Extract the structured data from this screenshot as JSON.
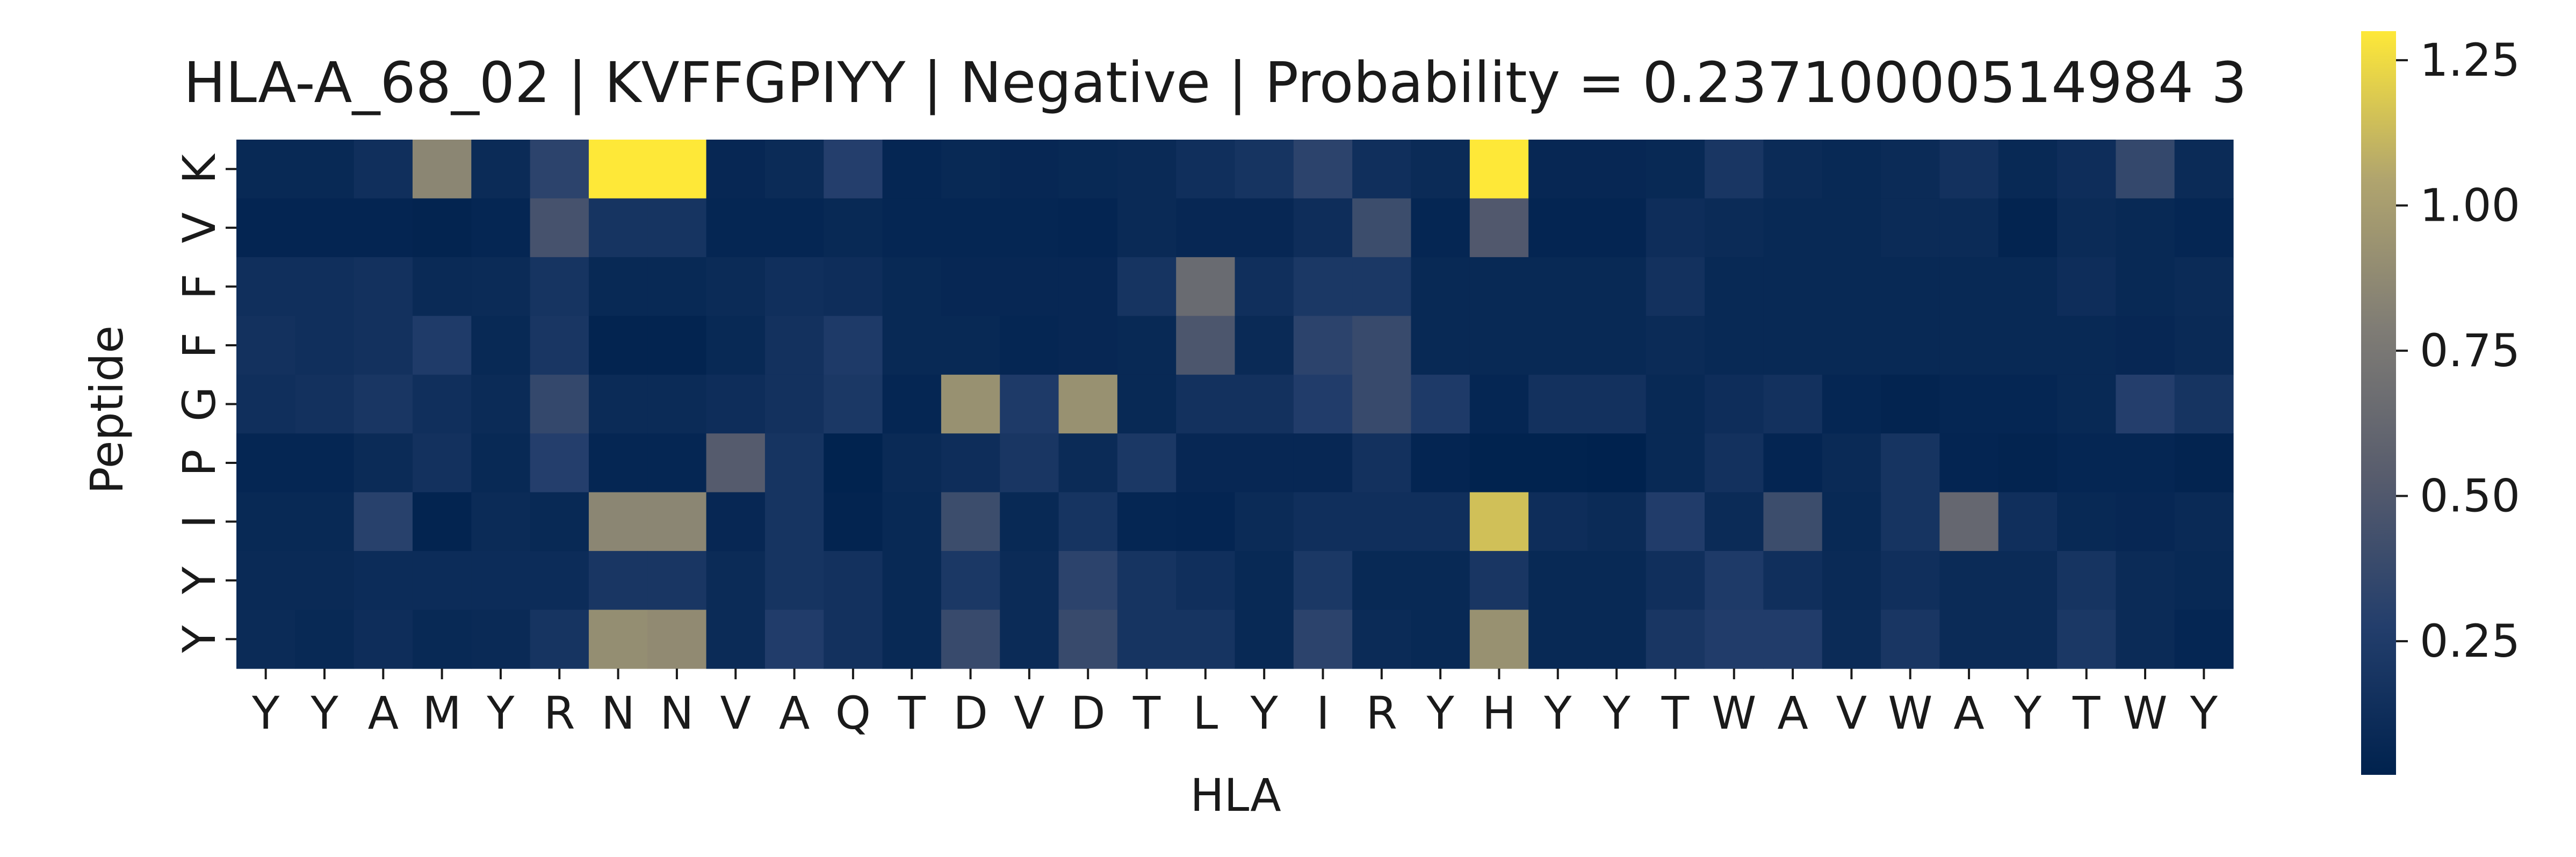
{
  "chart_data": {
    "type": "heatmap",
    "title": "HLA-A_68_02 | KVFFGPIYY | Negative | Probability = 0.23710000514984 3",
    "xlabel": "HLA",
    "ylabel": "Peptide",
    "x_ticklabels": [
      "Y",
      "Y",
      "A",
      "M",
      "Y",
      "R",
      "N",
      "N",
      "V",
      "A",
      "Q",
      "T",
      "D",
      "V",
      "D",
      "T",
      "L",
      "Y",
      "I",
      "R",
      "Y",
      "H",
      "Y",
      "Y",
      "T",
      "W",
      "A",
      "V",
      "W",
      "A",
      "Y",
      "T",
      "W",
      "Y"
    ],
    "y_ticklabels": [
      "K",
      "V",
      "F",
      "F",
      "G",
      "P",
      "I",
      "Y",
      "Y"
    ],
    "colormap": "cividis",
    "colorbar": {
      "vmin": 0.02,
      "vmax": 1.3,
      "ticks": [
        0.25,
        0.5,
        0.75,
        1.0,
        1.25
      ],
      "ticklabels": [
        "0.25",
        "0.50",
        "0.75",
        "1.00",
        "1.25"
      ]
    },
    "values": [
      [
        0.08,
        0.08,
        0.14,
        0.85,
        0.1,
        0.32,
        1.3,
        1.3,
        0.07,
        0.1,
        0.28,
        0.06,
        0.08,
        0.07,
        0.08,
        0.09,
        0.14,
        0.18,
        0.32,
        0.14,
        0.1,
        1.3,
        0.07,
        0.07,
        0.08,
        0.2,
        0.1,
        0.08,
        0.1,
        0.16,
        0.08,
        0.12,
        0.36,
        0.1
      ],
      [
        0.05,
        0.05,
        0.05,
        0.04,
        0.06,
        0.45,
        0.18,
        0.18,
        0.06,
        0.06,
        0.08,
        0.06,
        0.06,
        0.06,
        0.05,
        0.09,
        0.07,
        0.07,
        0.12,
        0.4,
        0.06,
        0.5,
        0.05,
        0.05,
        0.12,
        0.1,
        0.08,
        0.08,
        0.1,
        0.1,
        0.04,
        0.1,
        0.08,
        0.06
      ],
      [
        0.14,
        0.14,
        0.16,
        0.09,
        0.1,
        0.18,
        0.08,
        0.08,
        0.1,
        0.14,
        0.12,
        0.08,
        0.07,
        0.07,
        0.07,
        0.18,
        0.65,
        0.14,
        0.22,
        0.22,
        0.08,
        0.08,
        0.08,
        0.08,
        0.16,
        0.08,
        0.08,
        0.08,
        0.08,
        0.08,
        0.08,
        0.12,
        0.08,
        0.1
      ],
      [
        0.16,
        0.14,
        0.16,
        0.25,
        0.08,
        0.2,
        0.04,
        0.04,
        0.08,
        0.16,
        0.24,
        0.08,
        0.08,
        0.06,
        0.07,
        0.08,
        0.48,
        0.09,
        0.32,
        0.38,
        0.08,
        0.08,
        0.08,
        0.08,
        0.1,
        0.08,
        0.08,
        0.08,
        0.08,
        0.08,
        0.08,
        0.08,
        0.07,
        0.09
      ],
      [
        0.14,
        0.16,
        0.2,
        0.14,
        0.1,
        0.36,
        0.1,
        0.1,
        0.12,
        0.16,
        0.22,
        0.06,
        0.92,
        0.24,
        0.92,
        0.08,
        0.16,
        0.16,
        0.26,
        0.38,
        0.24,
        0.06,
        0.16,
        0.16,
        0.08,
        0.12,
        0.16,
        0.06,
        0.04,
        0.06,
        0.06,
        0.08,
        0.28,
        0.18
      ],
      [
        0.06,
        0.06,
        0.1,
        0.16,
        0.08,
        0.28,
        0.06,
        0.06,
        0.52,
        0.18,
        0.03,
        0.09,
        0.12,
        0.2,
        0.1,
        0.22,
        0.07,
        0.07,
        0.07,
        0.16,
        0.05,
        0.03,
        0.03,
        0.02,
        0.08,
        0.16,
        0.05,
        0.09,
        0.18,
        0.05,
        0.04,
        0.06,
        0.06,
        0.04
      ],
      [
        0.08,
        0.08,
        0.3,
        0.04,
        0.1,
        0.08,
        0.85,
        0.85,
        0.07,
        0.18,
        0.04,
        0.08,
        0.4,
        0.08,
        0.18,
        0.06,
        0.05,
        0.1,
        0.14,
        0.14,
        0.14,
        1.15,
        0.12,
        0.1,
        0.26,
        0.1,
        0.4,
        0.08,
        0.18,
        0.62,
        0.14,
        0.08,
        0.07,
        0.09
      ],
      [
        0.09,
        0.09,
        0.11,
        0.11,
        0.11,
        0.11,
        0.2,
        0.2,
        0.1,
        0.18,
        0.16,
        0.08,
        0.22,
        0.1,
        0.32,
        0.18,
        0.14,
        0.08,
        0.22,
        0.08,
        0.08,
        0.2,
        0.08,
        0.08,
        0.14,
        0.24,
        0.14,
        0.09,
        0.14,
        0.1,
        0.1,
        0.18,
        0.1,
        0.08
      ],
      [
        0.1,
        0.08,
        0.12,
        0.08,
        0.09,
        0.18,
        0.9,
        0.88,
        0.1,
        0.26,
        0.16,
        0.08,
        0.38,
        0.1,
        0.38,
        0.18,
        0.18,
        0.08,
        0.32,
        0.1,
        0.08,
        0.92,
        0.08,
        0.08,
        0.2,
        0.26,
        0.26,
        0.1,
        0.2,
        0.1,
        0.1,
        0.22,
        0.1,
        0.06
      ]
    ]
  }
}
